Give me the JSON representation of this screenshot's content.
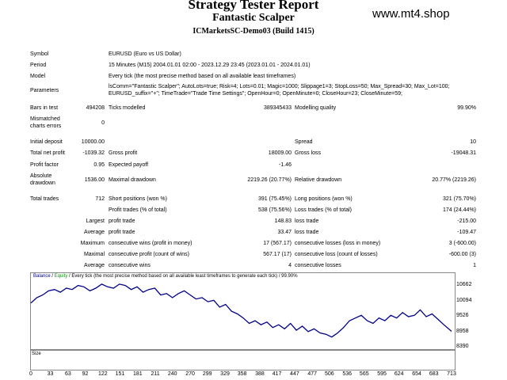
{
  "header": {
    "title": "Strategy Tester Report",
    "ea_name": "Fantastic Scalper",
    "server": "ICMarketsSC-Demo03 (Build 1415)",
    "site": "www.mt4.shop"
  },
  "info": {
    "symbol_label": "Symbol",
    "symbol": "EURUSD (Euro vs US Dollar)",
    "period_label": "Period",
    "period": "15 Minutes (M15) 2004.01.01 02:00 - 2023.12.29 23:45 (2023.01.01 - 2024.01.01)",
    "model_label": "Model",
    "model": "Every tick (the most precise method based on all available least timeframes)",
    "params_label": "Parameters",
    "params_line1": "lsComm=\"Fantastic Scalper\"; AutoLots=true; Risk=4; Lots=0.01; Magic=1000; Slippage1=3; StopLoss=50; Max_Spread=30; Max_Lot=100;",
    "params_line2": "EURUSD_suffix=\"+\"; TimeTrade=\"Trade Time Settings\"; OpenHour=0; OpenMinute=0; CloseHour=23; CloseMinute=59;"
  },
  "stats": {
    "bars_label": "Bars in test",
    "bars": "494208",
    "ticks_label": "Ticks modelled",
    "ticks": "389345433",
    "quality_label": "Modelling quality",
    "quality": "99.90%",
    "mismatch_label1": "Mismatched",
    "mismatch_label2": "charts errors",
    "mismatch": "0",
    "deposit_label": "Initial deposit",
    "deposit": "10000.00",
    "spread_label": "Spread",
    "spread": "10",
    "netprofit_label": "Total net profit",
    "netprofit": "-1039.32",
    "grossprofit_label": "Gross profit",
    "grossprofit": "18009.00",
    "grossloss_label": "Gross loss",
    "grossloss": "-19048.31",
    "pf_label": "Profit factor",
    "pf": "0.95",
    "payoff_label": "Expected payoff",
    "payoff": "-1.46",
    "absdd_label1": "Absolute",
    "absdd_label2": "drawdown",
    "absdd": "1536.00",
    "maxdd_label": "Maximal drawdown",
    "maxdd": "2219.26 (20.77%)",
    "reldd_label": "Relative drawdown",
    "reldd": "20.77% (2219.26)",
    "trades_label": "Total trades",
    "trades": "712",
    "short_label": "Short positions (won %)",
    "short": "391 (75.45%)",
    "long_label": "Long positions (won %)",
    "long": "321 (75.70%)",
    "profittrades_label": "Profit trades (% of total)",
    "profittrades": "538 (75.56%)",
    "losstrades_label": "Loss trades (% of total)",
    "losstrades": "174 (24.44%)",
    "largest_label": "Largest",
    "largest_pt_label": "profit trade",
    "largest_pt": "148.83",
    "largest_lt_label": "loss trade",
    "largest_lt": "-215.00",
    "average_label": "Average",
    "avg_pt_label": "profit trade",
    "avg_pt": "33.47",
    "avg_lt_label": "loss trade",
    "avg_lt": "-109.47",
    "maximum_label": "Maximum",
    "max_cw_label": "consecutive wins (profit in money)",
    "max_cw": "17 (567.17)",
    "max_cl_label": "consecutive losses (loss in money)",
    "max_cl": "3 (-600.00)",
    "maximal_label": "Maximal",
    "maximal_cp_label": "consecutive profit (count of wins)",
    "maximal_cp": "567.17 (17)",
    "maximal_cl_label": "consecutive loss (count of losses)",
    "maximal_cl": "-600.00 (3)",
    "average2_label": "Average",
    "avg_cw_label": "consecutive wins",
    "avg_cw": "4",
    "avg_cl_label": "consecutive losses",
    "avg_cl": "1"
  },
  "chart": {
    "legend_balance": "Balance",
    "legend_sep": " / ",
    "legend_equity": "Equity",
    "legend_rest": " / Every tick (the most precise method based on all available least timeframes to generate each tick) / 99.90%",
    "size_label": "Size",
    "balance_color": "#00008b",
    "equity_color": "#00a000",
    "size_color": "#22a822"
  },
  "chart_data": {
    "type": "line",
    "ylim": [
      8390,
      10900
    ],
    "y_ticks": [
      "10662",
      "10094",
      "9526",
      "8958",
      "8390"
    ],
    "x_ticks": [
      "0",
      "33",
      "63",
      "92",
      "122",
      "151",
      "181",
      "211",
      "240",
      "270",
      "299",
      "329",
      "358",
      "388",
      "417",
      "447",
      "477",
      "506",
      "536",
      "565",
      "595",
      "624",
      "654",
      "683",
      "713"
    ],
    "series": [
      {
        "x": [
          0,
          10,
          20,
          30,
          40,
          50,
          60,
          70,
          80,
          90,
          100,
          110,
          120,
          130,
          140,
          150,
          160,
          170,
          180,
          190,
          200,
          210,
          220,
          230,
          240,
          250,
          260,
          270,
          280,
          290,
          300,
          310,
          320,
          330,
          340,
          350,
          360,
          370,
          380,
          390,
          400,
          410,
          420,
          430,
          440,
          450,
          460,
          470,
          480,
          490,
          500,
          510,
          520,
          530,
          540,
          550,
          560,
          570,
          580,
          590,
          600,
          610,
          620,
          630,
          640,
          650,
          660,
          670,
          680,
          690,
          700,
          713
        ],
        "values": [
          10000,
          10200,
          10300,
          10450,
          10500,
          10400,
          10550,
          10500,
          10650,
          10600,
          10450,
          10550,
          10700,
          10600,
          10550,
          10700,
          10650,
          10500,
          10600,
          10400,
          10500,
          10550,
          10300,
          10350,
          10200,
          10350,
          10450,
          10300,
          10150,
          10200,
          10050,
          10100,
          9850,
          9950,
          9700,
          9600,
          9450,
          9250,
          9350,
          9200,
          9300,
          9100,
          9200,
          9050,
          9250,
          9000,
          9150,
          8950,
          9050,
          8900,
          8850,
          8750,
          8900,
          9100,
          9350,
          9450,
          9550,
          9350,
          9250,
          9450,
          9350,
          9550,
          9450,
          9650,
          9500,
          9550,
          9750,
          9500,
          9600,
          9400,
          9200,
          8958
        ]
      }
    ],
    "size_bars": 60
  }
}
